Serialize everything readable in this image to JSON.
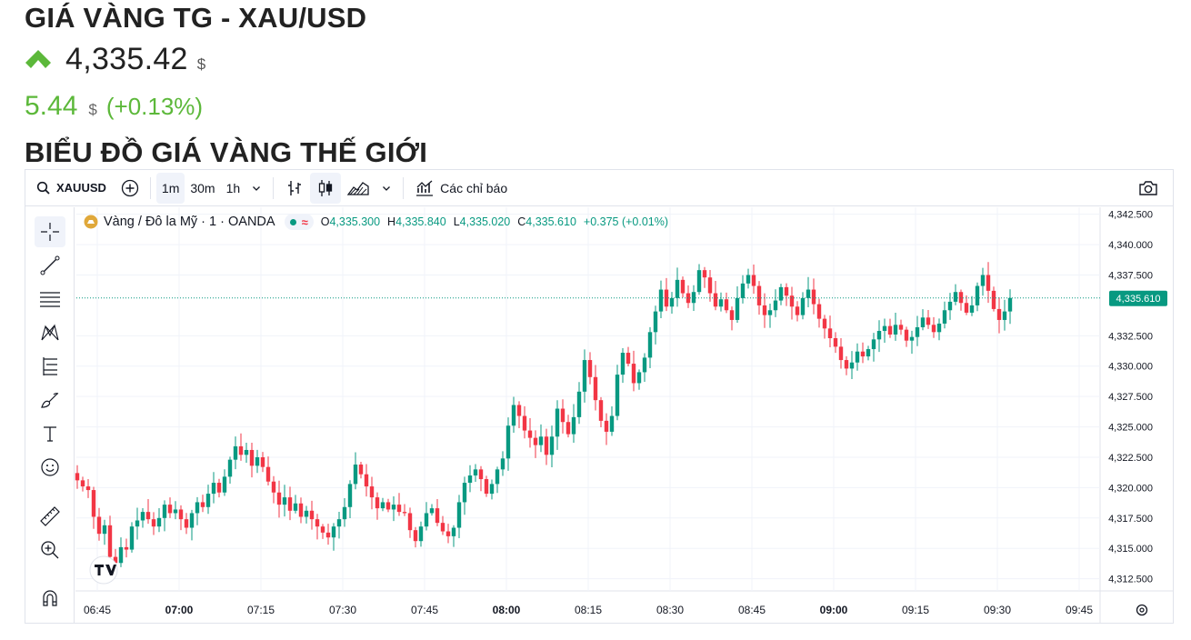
{
  "header": {
    "title": "GIÁ VÀNG TG - XAU/USD",
    "price": "4,335.42",
    "price_currency": "$",
    "change": "5.44",
    "change_currency": "$",
    "change_pct": "(+0.13%)",
    "section_title": "BIỂU ĐỒ GIÁ VÀNG THẾ GIỚI",
    "up_color": "#5cb83a"
  },
  "toolbar": {
    "symbol": "XAUUSD",
    "intervals": [
      "1m",
      "30m",
      "1h"
    ],
    "active_interval": "1m",
    "indicators_label": "Các chỉ báo",
    "icons": [
      "search-icon",
      "add-symbol-icon",
      "chevron-down-icon",
      "bar-type-icon",
      "candles-icon",
      "area-chart-icon",
      "indicators-icon",
      "camera-icon"
    ]
  },
  "left_tools": [
    "crosshair-icon",
    "trend-line-icon",
    "fib-lines-icon",
    "pattern-icon",
    "projection-icon",
    "brush-icon",
    "text-icon",
    "emoji-icon",
    "ruler-icon",
    "zoom-in-icon",
    "magnet-icon"
  ],
  "legend": {
    "symbol_name": "Vàng / Đô la Mỹ · 1 · OANDA",
    "o_label": "O",
    "o": "4,335.300",
    "h_label": "H",
    "h": "4,335.840",
    "l_label": "L",
    "l": "4,335.020",
    "c_label": "C",
    "c": "4,335.610",
    "change": "+0.375 (+0.01%)"
  },
  "chart_data": {
    "type": "candlestick",
    "time_ticks": [
      "06:45",
      "07:00",
      "07:15",
      "07:30",
      "07:45",
      "08:00",
      "08:15",
      "08:30",
      "08:45",
      "09:00",
      "09:15",
      "09:30",
      "09:45"
    ],
    "bold_ticks": [
      "07:00",
      "08:00",
      "09:00"
    ],
    "price_ticks": [
      "4,342.500",
      "4,340.000",
      "4,337.500",
      "4,332.500",
      "4,330.000",
      "4,327.500",
      "4,325.000",
      "4,322.500",
      "4,320.000",
      "4,317.500",
      "4,315.000",
      "4,312.500"
    ],
    "last_price_label": "4,335.610",
    "last_price": 4335.61,
    "ylim": [
      4311.5,
      4343.5
    ],
    "up_color": "#089981",
    "down_color": "#f23645",
    "close_path": [
      4320.6,
      4320.1,
      4319.8,
      4317.6,
      4316.2,
      4316.9,
      4314.3,
      4313.8,
      4315.1,
      4314.9,
      4316.8,
      4317.3,
      4318.0,
      4317.4,
      4316.8,
      4317.5,
      4318.6,
      4317.9,
      4318.2,
      4317.4,
      4316.7,
      4317.9,
      4318.8,
      4318.4,
      4319.5,
      4320.4,
      4319.6,
      4320.9,
      4322.3,
      4323.4,
      4322.7,
      4323.1,
      4321.8,
      4322.5,
      4321.7,
      4320.5,
      4319.6,
      4318.6,
      4319.2,
      4318.1,
      4318.7,
      4317.6,
      4318.1,
      4317.4,
      4316.8,
      4316.3,
      4315.9,
      4316.8,
      4317.4,
      4318.4,
      4320.3,
      4321.9,
      4321.1,
      4320.1,
      4319.2,
      4318.3,
      4318.8,
      4318.2,
      4318.6,
      4318.0,
      4317.9,
      4316.5,
      4315.6,
      4316.8,
      4317.9,
      4318.3,
      4317.1,
      4316.4,
      4316.0,
      4316.7,
      4318.8,
      4320.4,
      4321.0,
      4321.5,
      4320.7,
      4319.5,
      4320.3,
      4321.5,
      4322.4,
      4325.1,
      4326.8,
      4325.9,
      4324.7,
      4324.1,
      4323.5,
      4324.2,
      4322.7,
      4324.2,
      4326.5,
      4325.4,
      4324.4,
      4325.8,
      4327.9,
      4330.5,
      4329.1,
      4327.2,
      4325.5,
      4324.6,
      4325.9,
      4329.3,
      4331.1,
      4330.2,
      4328.6,
      4329.5,
      4330.7,
      4332.8,
      4334.5,
      4336.3,
      4334.9,
      4335.6,
      4337.1,
      4336.0,
      4335.2,
      4336.1,
      4337.9,
      4337.3,
      4336.0,
      4334.9,
      4335.5,
      4334.6,
      4333.8,
      4335.6,
      4336.8,
      4337.5,
      4336.6,
      4335.0,
      4334.2,
      4334.6,
      4335.4,
      4336.5,
      4335.8,
      4334.9,
      4334.2,
      4335.6,
      4336.3,
      4335.1,
      4333.9,
      4333.1,
      4332.3,
      4331.6,
      4330.5,
      4329.8,
      4330.3,
      4331.2,
      4330.8,
      4331.4,
      4332.2,
      4332.9,
      4333.3,
      4332.6,
      4333.4,
      4333.0,
      4332.1,
      4332.4,
      4333.2,
      4334.0,
      4333.4,
      4332.8,
      4333.5,
      4334.6,
      4335.3,
      4336.1,
      4335.2,
      4334.4,
      4335.0,
      4336.6,
      4337.5,
      4336.2,
      4334.7,
      4333.8,
      4334.5,
      4335.61
    ]
  }
}
